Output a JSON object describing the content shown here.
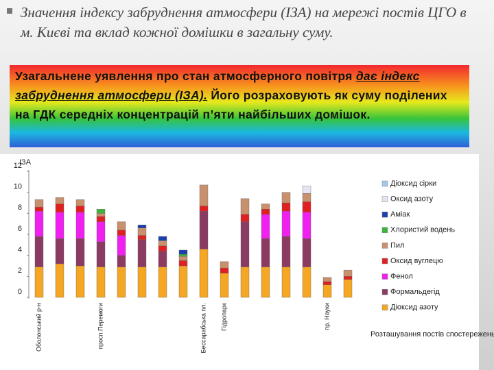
{
  "slide": {
    "title": "Значення індексу забруднення атмосфери (ІЗА) на мережі постів ЦГО в  м. Києві  та вклад кожної домішки в загальну суму.",
    "callout": [
      "Узагальнене уявлення про стан атмосферного повітря ",
      "дає індекс забруднення атмосфери (ІЗА).",
      " Його розраховують як суму поділених на ГДК середніх концентрацій п’яти найбільших домішок."
    ]
  },
  "chart_data": {
    "type": "stacked_bar",
    "y_label": "ІЗА",
    "x_label": "Розташування постів спостережень",
    "categories": [
      "Оболонський р-н",
      null,
      null,
      "просп.Перемоги",
      null,
      null,
      null,
      null,
      "Бессарабська пл.",
      "Гідропарк",
      null,
      null,
      null,
      null,
      "пр. Науки",
      null
    ],
    "ylim": [
      0,
      12
    ],
    "yticks": [
      0,
      2,
      4,
      6,
      8,
      10,
      12
    ],
    "legend": "right",
    "series": [
      {
        "name": "Діоксид азоту",
        "color": "#f5a623",
        "values": [
          2.9,
          3.2,
          3.0,
          2.9,
          2.9,
          2.9,
          2.9,
          3.0,
          4.6,
          2.3,
          2.9,
          2.9,
          2.9,
          2.9,
          1.2,
          1.7
        ]
      },
      {
        "name": "Формальдегід",
        "color": "#8b3a62",
        "values": [
          2.9,
          2.4,
          2.6,
          2.4,
          1.1,
          2.6,
          1.5,
          null,
          3.6,
          null,
          4.3,
          2.7,
          2.9,
          2.7,
          null,
          null
        ]
      },
      {
        "name": "Фенол",
        "color": "#f020f0",
        "values": [
          2.4,
          2.5,
          2.5,
          1.9,
          1.9,
          null,
          null,
          null,
          null,
          null,
          null,
          2.3,
          2.4,
          2.5,
          null,
          null
        ]
      },
      {
        "name": "Оксид вуглецю",
        "color": "#e02020",
        "values": [
          0.4,
          0.8,
          0.6,
          0.5,
          0.5,
          0.4,
          0.5,
          0.5,
          0.5,
          0.5,
          0.7,
          0.5,
          0.8,
          1.0,
          0.3,
          0.3
        ]
      },
      {
        "name": "Пил",
        "color": "#c8906c",
        "values": [
          0.7,
          0.6,
          0.6,
          0.3,
          0.8,
          0.7,
          0.5,
          0.4,
          2.0,
          0.6,
          1.5,
          0.5,
          1.0,
          0.8,
          0.4,
          0.6
        ]
      },
      {
        "name": "Хлористий водень",
        "color": "#3cb43c",
        "values": [
          null,
          null,
          null,
          0.4,
          null,
          null,
          null,
          0.2,
          null,
          null,
          null,
          null,
          null,
          null,
          null,
          null
        ]
      },
      {
        "name": "Аміак",
        "color": "#1a3fae",
        "values": [
          null,
          null,
          null,
          null,
          null,
          0.3,
          0.4,
          0.4,
          null,
          null,
          null,
          null,
          null,
          null,
          null,
          null
        ]
      },
      {
        "name": "Оксид азоту",
        "color": "#e4e4f2",
        "values": [
          null,
          null,
          null,
          null,
          null,
          null,
          null,
          null,
          null,
          null,
          null,
          null,
          null,
          0.7,
          null,
          null
        ]
      },
      {
        "name": "Діоксид сірки",
        "color": "#a6c8e8",
        "values": [
          null,
          null,
          null,
          null,
          null,
          null,
          null,
          null,
          null,
          null,
          null,
          null,
          null,
          null,
          null,
          null
        ]
      }
    ]
  }
}
